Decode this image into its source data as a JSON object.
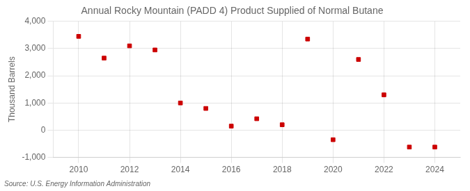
{
  "chart_data": {
    "type": "scatter",
    "title": "Annual Rocky Mountain (PADD 4) Product Supplied of Normal Butane",
    "y_label": "Thousand Barrels",
    "source": "Source: U.S. Energy Information Administration",
    "x": [
      2010,
      2011,
      2012,
      2013,
      2014,
      2015,
      2016,
      2017,
      2018,
      2019,
      2020,
      2021,
      2022,
      2023,
      2024
    ],
    "values": [
      3450,
      2650,
      3100,
      2950,
      1000,
      800,
      150,
      420,
      200,
      3350,
      -350,
      2600,
      1300,
      -620,
      -620
    ],
    "color": "#cc0000",
    "marker": "square",
    "xlim": [
      2009,
      2025
    ],
    "xticks": [
      2010,
      2012,
      2014,
      2016,
      2018,
      2020,
      2022,
      2024
    ],
    "ylim": [
      -1000,
      4000
    ],
    "yticks": [
      {
        "value": -1000,
        "label": "-1,000"
      },
      0,
      {
        "value": 1000,
        "label": "1,000"
      },
      {
        "value": 2000,
        "label": "2,000"
      },
      {
        "value": 3000,
        "label": "3,000"
      },
      {
        "value": 4000,
        "label": "4,000"
      }
    ],
    "grid": true
  }
}
